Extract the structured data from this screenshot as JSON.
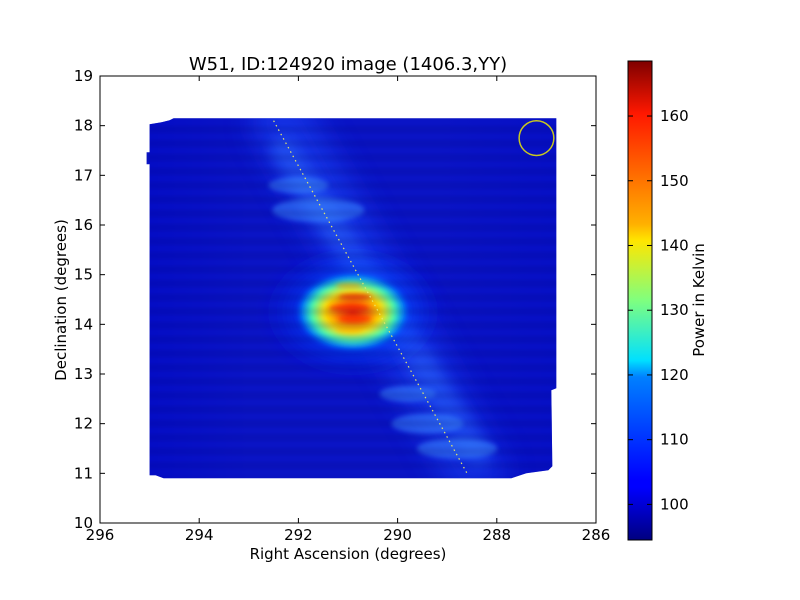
{
  "chart_data": {
    "type": "heatmap",
    "title": "W51, ID:124920 image (1406.3,YY)",
    "xlabel": "Right Ascension (degrees)",
    "ylabel": "Declination (degrees)",
    "xlim": [
      296,
      286
    ],
    "ylim": [
      10,
      19
    ],
    "xticks": [
      "296",
      "294",
      "292",
      "290",
      "288",
      "286"
    ],
    "yticks": [
      "10",
      "11",
      "12",
      "13",
      "14",
      "15",
      "16",
      "17",
      "18",
      "19"
    ],
    "colorbar": {
      "label": "Power in Kelvin",
      "range": [
        94.5,
        168.5
      ],
      "ticks": [
        "100",
        "110",
        "120",
        "130",
        "140",
        "150",
        "160"
      ],
      "colormap": "jet"
    },
    "grid": false,
    "map_region": {
      "ra_min": 286.8,
      "ra_max": 295.0,
      "dec_min": 10.9,
      "dec_max": 18.15,
      "background_value": 98
    },
    "source": {
      "ra": 290.9,
      "dec": 14.25,
      "peak_value": 166,
      "halo_value": 118
    },
    "scan_line": {
      "start": {
        "ra": 292.5,
        "dec": 18.1
      },
      "end": {
        "ra": 288.6,
        "dec": 11.0
      },
      "color": "#e8e86a"
    },
    "beam_circle": {
      "ra": 287.2,
      "dec": 17.75,
      "radius_deg": 0.35,
      "color": "#c8c820"
    }
  }
}
